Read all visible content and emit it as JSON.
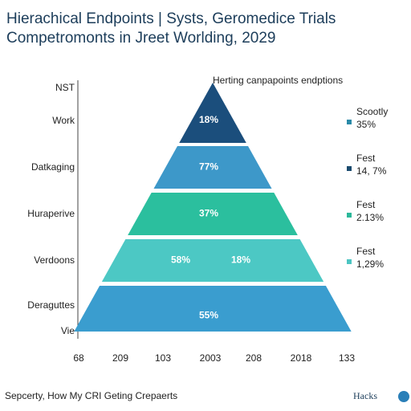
{
  "chart_data": {
    "type": "pyramid",
    "title": "Hierachical Endpoints | Systs, Geromedice Trials",
    "subtitle": "Competromonts in Jreet Worlding, 2029",
    "annotation": "Herting canpapoints endptions",
    "row_labels": [
      "NST",
      "Work",
      "Datkaging",
      "Huraperive",
      "Verdoons",
      "Deraguttes",
      "Vie"
    ],
    "levels": [
      {
        "values": [
          18
        ],
        "value_labels": [
          "18%"
        ],
        "color": "#1b4e7c"
      },
      {
        "values": [
          77
        ],
        "value_labels": [
          "77%"
        ],
        "color": "#3d98c9"
      },
      {
        "values": [
          37
        ],
        "value_labels": [
          "37%"
        ],
        "color": "#2bbf9e"
      },
      {
        "values": [
          58,
          18
        ],
        "value_labels": [
          "58%",
          "18%"
        ],
        "color": "#4cc8c4"
      },
      {
        "values": [
          55
        ],
        "value_labels": [
          "55%"
        ],
        "color": "#3a9dcf"
      }
    ],
    "x_labels": [
      "68",
      "209",
      "103",
      "2003",
      "208",
      "2018",
      "133"
    ],
    "legend": [
      {
        "name": "Scootly",
        "label": "35%",
        "color": "#2a8aa8"
      },
      {
        "name": "Fest",
        "label": "14, 7%",
        "color": "#1a4a6e"
      },
      {
        "name": "Fest",
        "label": "2.13%",
        "color": "#2bb89a"
      },
      {
        "name": "Fest",
        "label": "1,29%",
        "color": "#4cc5c2"
      }
    ],
    "footer": "Sepcerty, How My CRI Geting Crepaerts",
    "brand": "Hacks"
  }
}
